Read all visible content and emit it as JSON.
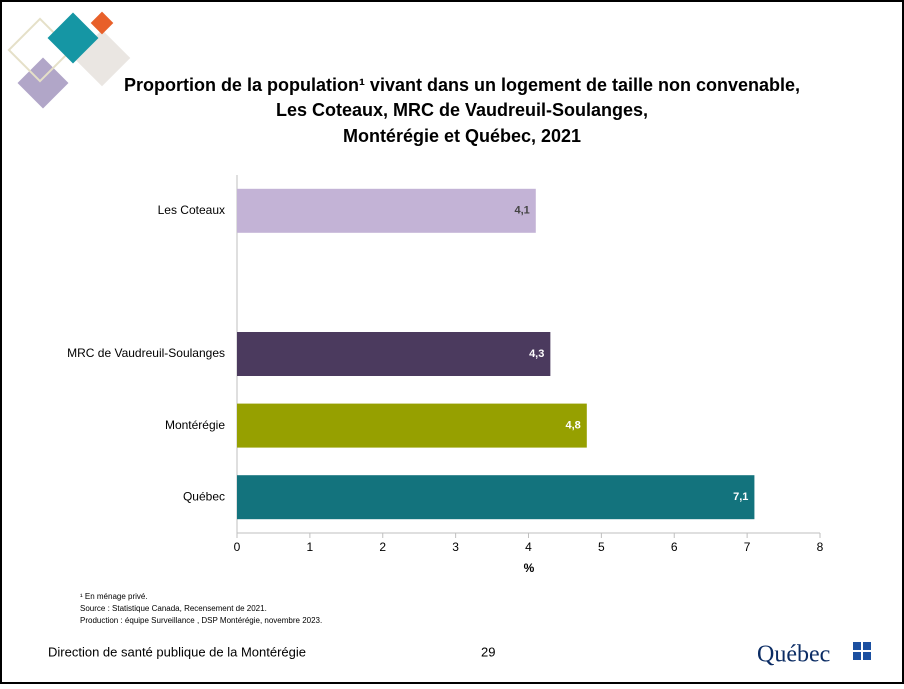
{
  "chart_data": {
    "type": "hbar",
    "title": [
      "Proportion de la population¹ vivant dans un logement de taille non convenable,",
      "Les Coteaux, MRC de Vaudreuil-Soulanges,",
      "Montérégie et Québec, 2021"
    ],
    "categories": [
      "Les Coteaux",
      null,
      "MRC de Vaudreuil-Soulanges",
      "Montérégie",
      "Québec"
    ],
    "values": [
      4.1,
      null,
      4.3,
      4.8,
      7.1
    ],
    "value_labels": [
      "4,1",
      null,
      "4,3",
      "4,8",
      "7,1"
    ],
    "colors": [
      "#c3b3d6",
      null,
      "#4b3a5e",
      "#96a000",
      "#13737d"
    ],
    "xlim": [
      0,
      8
    ],
    "xticks": [
      0,
      1,
      2,
      3,
      4,
      5,
      6,
      7,
      8
    ],
    "xlabel": "%"
  },
  "notes": [
    "¹ En ménage privé.",
    "Source : Statistique Canada, Recensement de 2021.",
    "Production : équipe Surveillance , DSP Montérégie, novembre 2023."
  ],
  "footer": {
    "organization": "Direction de santé publique de la Montérégie",
    "page": "29",
    "logo": "Québec"
  }
}
